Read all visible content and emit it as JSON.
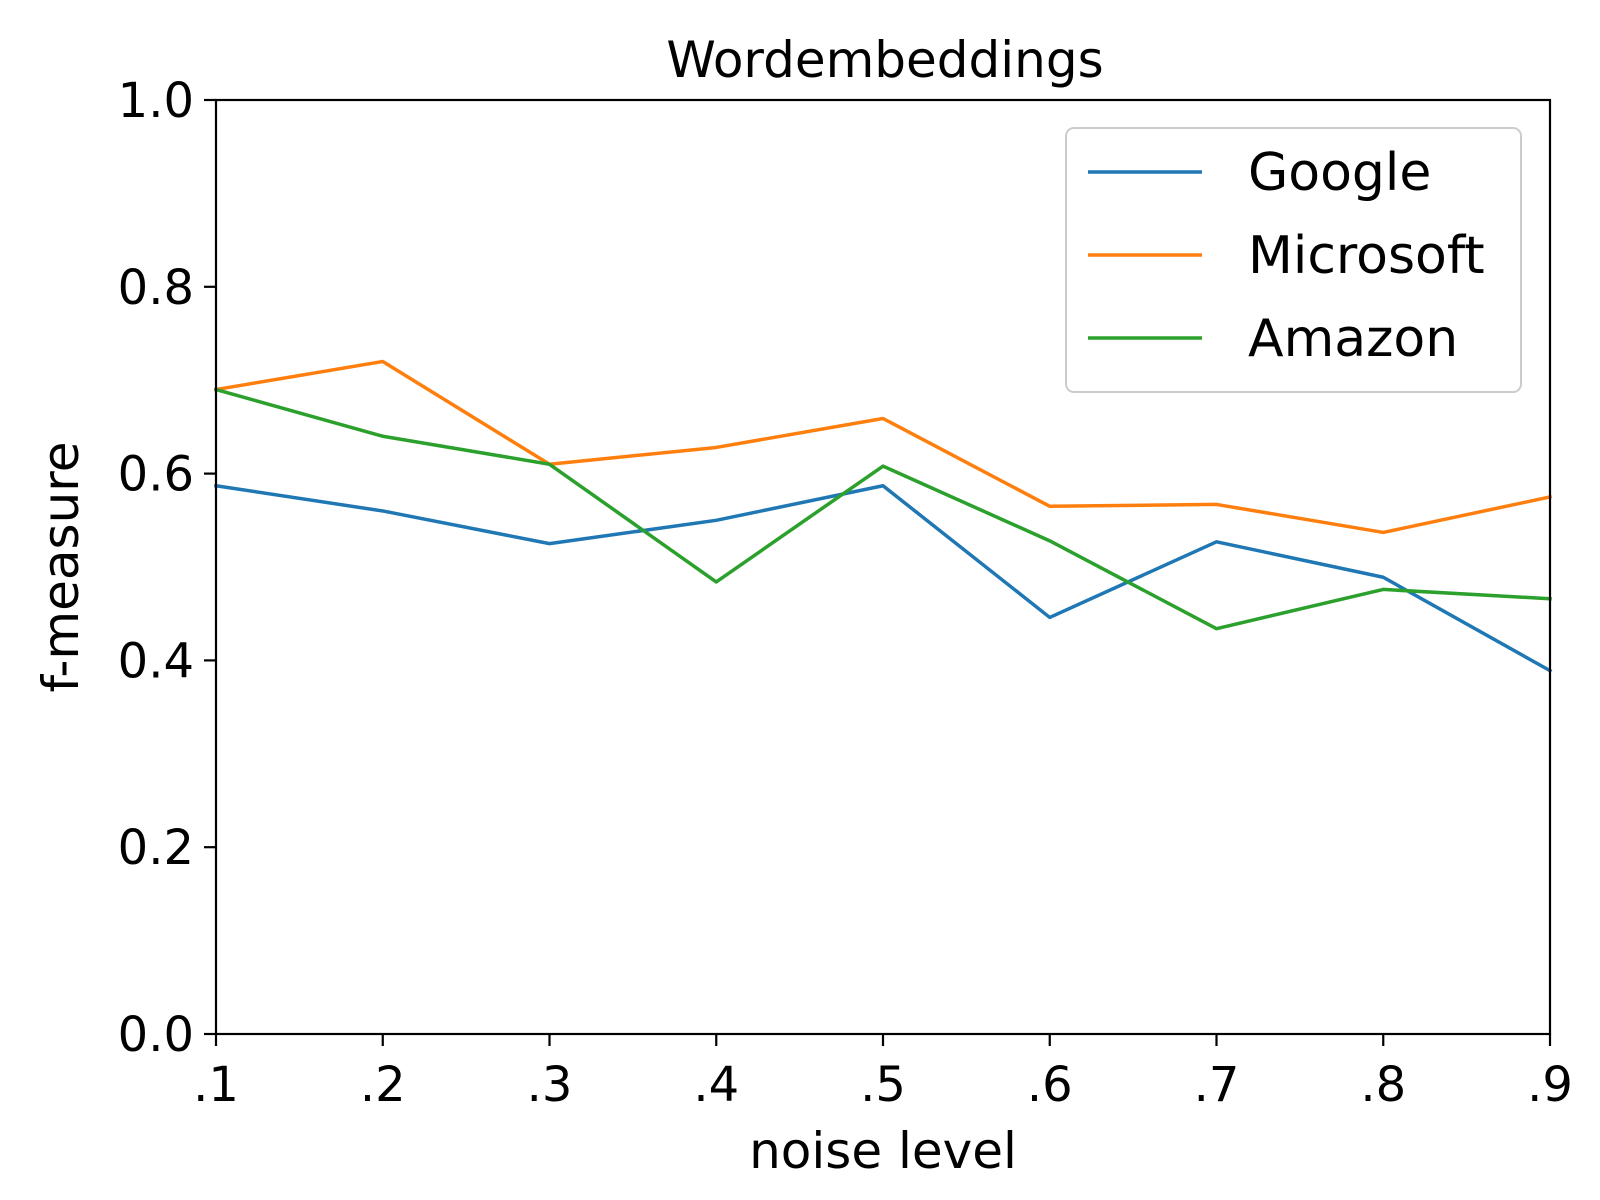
{
  "chart_data": {
    "type": "line",
    "title": "Wordembeddings",
    "xlabel": "noise level",
    "ylabel": "f-measure",
    "categories": [
      ".1",
      ".2",
      ".3",
      ".4",
      ".5",
      ".6",
      ".7",
      ".8",
      ".9"
    ],
    "ylim": [
      0.0,
      1.0
    ],
    "yticks": [
      "0.0",
      "0.2",
      "0.4",
      "0.6",
      "0.8",
      "1.0"
    ],
    "grid": false,
    "legend_position": "top-right",
    "series": [
      {
        "name": "Google",
        "color": "#1f77b4",
        "values": [
          0.587,
          0.56,
          0.525,
          0.55,
          0.587,
          0.446,
          0.527,
          0.489,
          0.389
        ]
      },
      {
        "name": "Microsoft",
        "color": "#ff7f0e",
        "values": [
          0.69,
          0.72,
          0.61,
          0.628,
          0.659,
          0.565,
          0.567,
          0.537,
          0.575
        ]
      },
      {
        "name": "Amazon",
        "color": "#2ca02c",
        "values": [
          0.69,
          0.64,
          0.61,
          0.484,
          0.608,
          0.528,
          0.434,
          0.476,
          0.466
        ]
      }
    ]
  }
}
